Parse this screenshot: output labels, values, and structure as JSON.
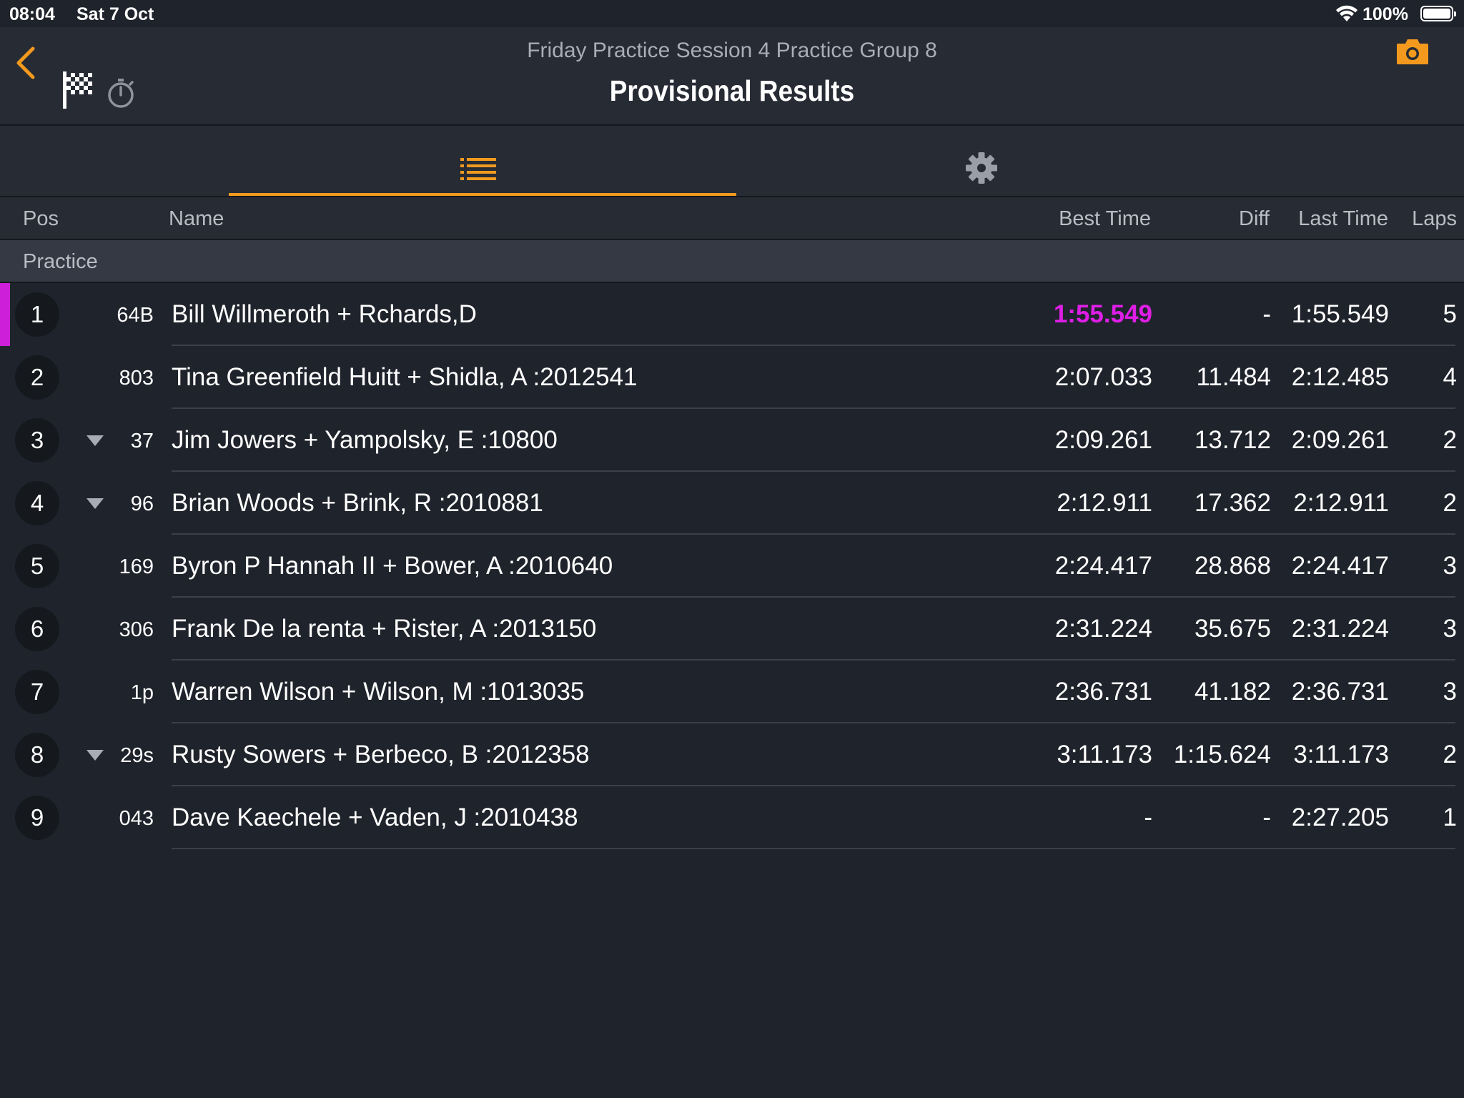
{
  "status_bar": {
    "time": "08:04",
    "date": "Sat 7 Oct",
    "battery": "100%"
  },
  "header": {
    "session": "Friday Practice Session 4 Practice Group 8",
    "title": "Provisional Results",
    "accent_color": "#f39a1e"
  },
  "tabs": [
    {
      "name": "list",
      "icon": "list-icon",
      "active": true
    },
    {
      "name": "settings",
      "icon": "gear-icon",
      "active": false
    }
  ],
  "columns": {
    "pos": "Pos",
    "name": "Name",
    "best_time": "Best Time",
    "diff": "Diff",
    "last_time": "Last Time",
    "laps": "Laps"
  },
  "group": "Practice",
  "fastest_color": "#de1ee6",
  "rows": [
    {
      "pos": "1",
      "num": "64B",
      "name": "Bill Willmeroth +  Rchards,D",
      "best": "1:55.549",
      "diff": "-",
      "last": "1:55.549",
      "laps": "5",
      "down": false,
      "fastest": true
    },
    {
      "pos": "2",
      "num": "803",
      "name": "Tina Greenfield Huitt + Shidla, A :2012541",
      "best": "2:07.033",
      "diff": "11.484",
      "last": "2:12.485",
      "laps": "4",
      "down": false,
      "fastest": false
    },
    {
      "pos": "3",
      "num": "37",
      "name": "Jim Jowers + Yampolsky, E :10800",
      "best": "2:09.261",
      "diff": "13.712",
      "last": "2:09.261",
      "laps": "2",
      "down": true,
      "fastest": false
    },
    {
      "pos": "4",
      "num": "96",
      "name": "Brian Woods + Brink, R :2010881",
      "best": "2:12.911",
      "diff": "17.362",
      "last": "2:12.911",
      "laps": "2",
      "down": true,
      "fastest": false
    },
    {
      "pos": "5",
      "num": "169",
      "name": "Byron P Hannah II + Bower, A :2010640",
      "best": "2:24.417",
      "diff": "28.868",
      "last": "2:24.417",
      "laps": "3",
      "down": false,
      "fastest": false
    },
    {
      "pos": "6",
      "num": "306",
      "name": "Frank De la renta + Rister, A :2013150",
      "best": "2:31.224",
      "diff": "35.675",
      "last": "2:31.224",
      "laps": "3",
      "down": false,
      "fastest": false
    },
    {
      "pos": "7",
      "num": "1p",
      "name": "Warren Wilson + Wilson, M :1013035",
      "best": "2:36.731",
      "diff": "41.182",
      "last": "2:36.731",
      "laps": "3",
      "down": false,
      "fastest": false
    },
    {
      "pos": "8",
      "num": "29s",
      "name": "Rusty Sowers + Berbeco, B :2012358",
      "best": "3:11.173",
      "diff": "1:15.624",
      "last": "3:11.173",
      "laps": "2",
      "down": true,
      "fastest": false
    },
    {
      "pos": "9",
      "num": "043",
      "name": "Dave Kaechele + Vaden, J :2010438",
      "best": "-",
      "diff": "-",
      "last": "2:27.205",
      "laps": "1",
      "down": false,
      "fastest": false
    }
  ]
}
